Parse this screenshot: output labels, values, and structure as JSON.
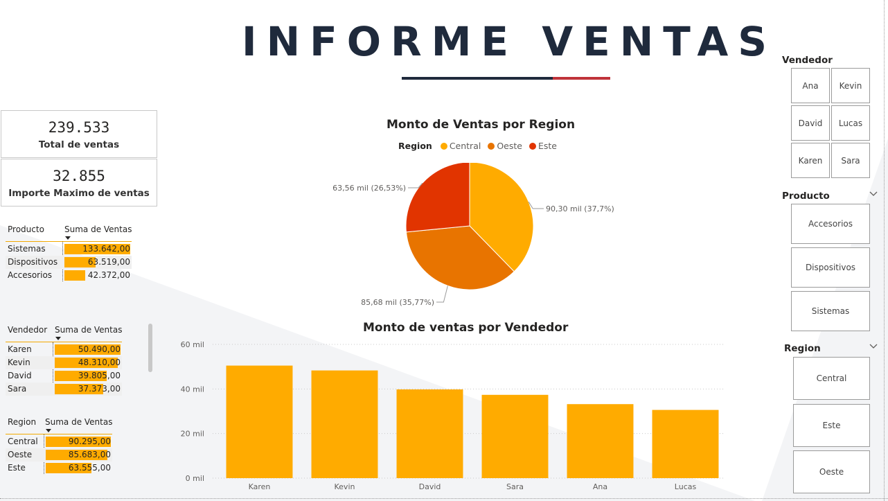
{
  "report": {
    "title": "INFORME VENTAS"
  },
  "cards": [
    {
      "value": "239.533",
      "label": "Total de ventas"
    },
    {
      "value": "32.855",
      "label": "Importe Maximo de ventas"
    }
  ],
  "colors": {
    "accent": "#ffab00",
    "title_dark": "#1f2a3c",
    "title_red": "#c0333a",
    "central": "#ffab00",
    "oeste": "#e87400",
    "este": "#e13400"
  },
  "tables": {
    "producto": {
      "col1": "Producto",
      "col2": "Suma de Ventas",
      "rows": [
        {
          "name": "Sistemas",
          "value": "133.642,00",
          "amount": 133642
        },
        {
          "name": "Dispositivos",
          "value": "63.519,00",
          "amount": 63519
        },
        {
          "name": "Accesorios",
          "value": "42.372,00",
          "amount": 42372
        }
      ]
    },
    "vendedor": {
      "col1": "Vendedor",
      "col2": "Suma de Ventas",
      "rows": [
        {
          "name": "Karen",
          "value": "50.490,00",
          "amount": 50490
        },
        {
          "name": "Kevin",
          "value": "48.310,00",
          "amount": 48310
        },
        {
          "name": "David",
          "value": "39.805,00",
          "amount": 39805
        },
        {
          "name": "Sara",
          "value": "37.373,00",
          "amount": 37373
        }
      ]
    },
    "region": {
      "col1": "Region",
      "col2": "Suma de Ventas",
      "rows": [
        {
          "name": "Central",
          "value": "90.295,00",
          "amount": 90295
        },
        {
          "name": "Oeste",
          "value": "85.683,00",
          "amount": 85683
        },
        {
          "name": "Este",
          "value": "63.555,00",
          "amount": 63555
        }
      ]
    }
  },
  "chart_data": [
    {
      "type": "pie",
      "title": "Monto de Ventas por Region",
      "legend_title": "Region",
      "legend_position": "top",
      "categories": [
        "Central",
        "Oeste",
        "Este"
      ],
      "values": [
        90.3,
        85.68,
        63.56
      ],
      "unit": "mil",
      "labels": [
        "90,30 mil (37,7%)",
        "85,68 mil (35,77%)",
        "63,56 mil (26,53%)"
      ],
      "colors": [
        "#ffab00",
        "#e87400",
        "#e13400"
      ]
    },
    {
      "type": "bar",
      "title": "Monto de ventas por Vendedor",
      "categories": [
        "Karen",
        "Kevin",
        "David",
        "Sara",
        "Ana",
        "Lucas"
      ],
      "values": [
        50.49,
        48.31,
        39.81,
        37.37,
        33.2,
        30.6
      ],
      "unit": "mil",
      "yticks": [
        "0 mil",
        "20 mil",
        "40 mil",
        "60 mil"
      ],
      "ylim": [
        0,
        60
      ],
      "grid": true,
      "color": "#ffab00"
    }
  ],
  "slicers": {
    "vendedor": {
      "title": "Vendedor",
      "options": [
        "Ana",
        "Kevin",
        "David",
        "Lucas",
        "Karen",
        "Sara"
      ]
    },
    "producto": {
      "title": "Producto",
      "options": [
        "Accesorios",
        "Dispositivos",
        "Sistemas"
      ]
    },
    "region": {
      "title": "Region",
      "options": [
        "Central",
        "Este",
        "Oeste"
      ]
    }
  },
  "icons": {
    "chevron": "chevron-down-icon",
    "sort": "sort-desc-icon"
  }
}
